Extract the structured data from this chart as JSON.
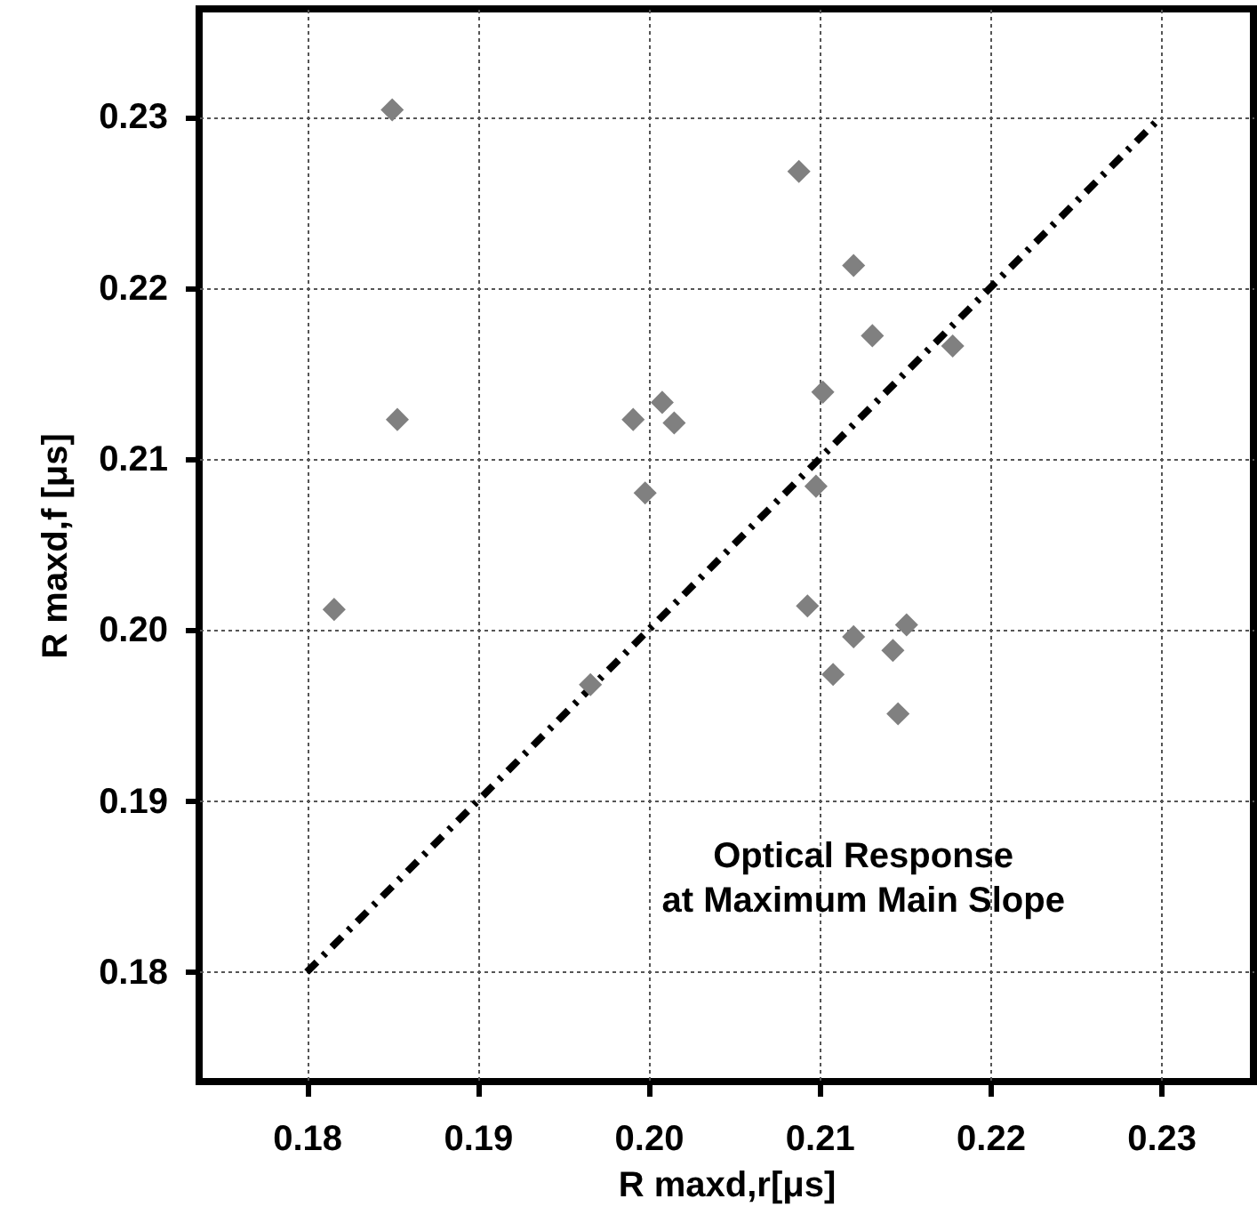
{
  "chart_data": {
    "type": "scatter",
    "xlabel": "R maxd,r[μs]",
    "ylabel": "R maxd,f [μs]",
    "annotations": [
      "Optical Response\nat Maximum Main Slope"
    ],
    "xlim": [
      0.1737,
      0.2354
    ],
    "ylim": [
      0.1736,
      0.2363
    ],
    "xticks": [
      {
        "value": 0.18,
        "label": "0.18"
      },
      {
        "value": 0.19,
        "label": "0.19"
      },
      {
        "value": 0.2,
        "label": "0.20"
      },
      {
        "value": 0.21,
        "label": "0.21"
      },
      {
        "value": 0.22,
        "label": "0.22"
      },
      {
        "value": 0.23,
        "label": "0.23"
      }
    ],
    "yticks": [
      {
        "value": 0.18,
        "label": "0.18"
      },
      {
        "value": 0.19,
        "label": "0.19"
      },
      {
        "value": 0.2,
        "label": "0.20"
      },
      {
        "value": 0.21,
        "label": "0.21"
      },
      {
        "value": 0.22,
        "label": "0.22"
      },
      {
        "value": 0.23,
        "label": "0.23"
      }
    ],
    "grid": true,
    "series": [
      {
        "color": "#808080",
        "marker": "diamond",
        "x": [
          0.185,
          0.1853,
          0.1991,
          0.2008,
          0.2015,
          0.1998,
          0.2088,
          0.212,
          0.2131,
          0.2178,
          0.2102,
          0.2098,
          0.1816,
          0.1966,
          0.2093,
          0.212,
          0.2151,
          0.2143,
          0.2108,
          0.2146
        ],
        "values": [
          0.2304,
          0.2123,
          0.2123,
          0.2133,
          0.2121,
          0.208,
          0.2268,
          0.2213,
          0.2172,
          0.2166,
          0.2139,
          0.2084,
          0.2012,
          0.1968,
          0.2014,
          0.1996,
          0.2003,
          0.1988,
          0.1974,
          0.1951
        ]
      },
      {
        "type": "line",
        "color": "#000000",
        "line_style": "dashed",
        "marker": "none",
        "x": [
          0.18,
          0.23
        ],
        "values": [
          0.18,
          0.23
        ]
      }
    ]
  }
}
